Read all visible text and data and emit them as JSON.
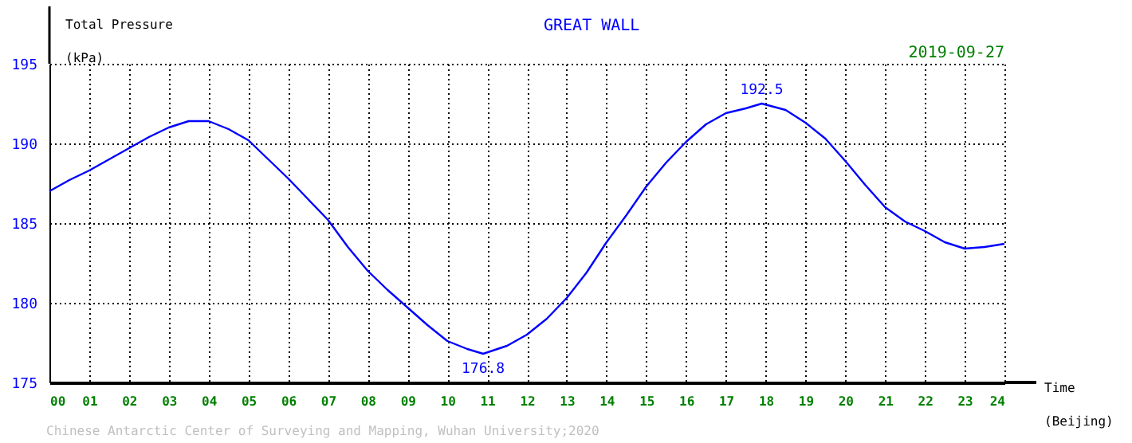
{
  "chart_data": {
    "type": "line",
    "title": "GREAT WALL",
    "xlabel": "Time\n(Beijing)",
    "ylabel": "Total Pressure\n(kPa)",
    "x": [
      0,
      0.5,
      1,
      1.5,
      2,
      2.5,
      3,
      3.5,
      4,
      4.5,
      5,
      5.5,
      6,
      6.5,
      7,
      7.5,
      8,
      8.5,
      9,
      9.5,
      10,
      10.5,
      10.9,
      11.5,
      12,
      12.5,
      13,
      13.5,
      14,
      14.5,
      15,
      15.5,
      16,
      16.5,
      17,
      17.5,
      17.9,
      18.5,
      19,
      19.5,
      20,
      20.5,
      21,
      21.5,
      22,
      22.5,
      23,
      23.5,
      24
    ],
    "series": [
      {
        "color": "#0000ff",
        "values": [
          187.0,
          187.7,
          188.3,
          189.0,
          189.7,
          190.4,
          191.0,
          191.4,
          191.4,
          190.9,
          190.2,
          189.0,
          187.8,
          186.5,
          185.2,
          183.5,
          182.0,
          180.8,
          179.7,
          178.6,
          177.6,
          177.1,
          176.8,
          177.3,
          178.0,
          179.0,
          180.3,
          181.9,
          183.8,
          185.5,
          187.3,
          188.8,
          190.1,
          191.2,
          191.9,
          192.2,
          192.5,
          192.1,
          191.3,
          190.3,
          188.9,
          187.4,
          186.0,
          185.1,
          184.5,
          183.8,
          183.4,
          183.5,
          183.7
        ]
      }
    ],
    "xlim": [
      0,
      24
    ],
    "ylim": [
      175,
      195
    ],
    "xticks": [
      {
        "value": 0,
        "label": "00"
      },
      {
        "value": 1,
        "label": "01"
      },
      {
        "value": 2,
        "label": "02"
      },
      {
        "value": 3,
        "label": "03"
      },
      {
        "value": 4,
        "label": "04"
      },
      {
        "value": 5,
        "label": "05"
      },
      {
        "value": 6,
        "label": "06"
      },
      {
        "value": 7,
        "label": "07"
      },
      {
        "value": 8,
        "label": "08"
      },
      {
        "value": 9,
        "label": "09"
      },
      {
        "value": 10,
        "label": "10"
      },
      {
        "value": 11,
        "label": "11"
      },
      {
        "value": 12,
        "label": "12"
      },
      {
        "value": 13,
        "label": "13"
      },
      {
        "value": 14,
        "label": "14"
      },
      {
        "value": 15,
        "label": "15"
      },
      {
        "value": 16,
        "label": "16"
      },
      {
        "value": 17,
        "label": "17"
      },
      {
        "value": 18,
        "label": "18"
      },
      {
        "value": 19,
        "label": "19"
      },
      {
        "value": 20,
        "label": "20"
      },
      {
        "value": 21,
        "label": "21"
      },
      {
        "value": 22,
        "label": "22"
      },
      {
        "value": 23,
        "label": "23"
      },
      {
        "value": 24,
        "label": "24"
      }
    ],
    "yticks": [
      175,
      180,
      185,
      190,
      195
    ],
    "grid": true,
    "line_style": "solid",
    "marker": "none",
    "annotations": [
      {
        "text": "192.5",
        "x": 17.9,
        "y": 192.5
      },
      {
        "text": "176.8",
        "x": 10.9,
        "y": 176.8
      },
      "2019-09-27",
      "Chinese Antarctic Center of Surveying and Mapping, Wuhan University;2020"
    ]
  }
}
